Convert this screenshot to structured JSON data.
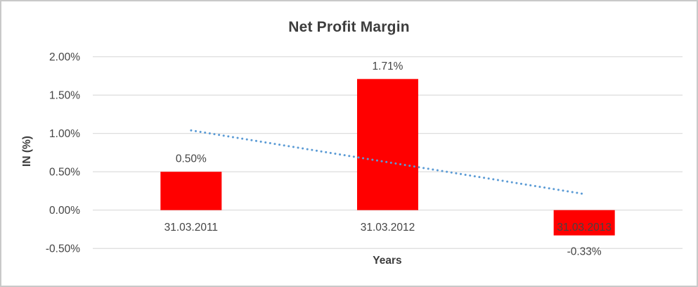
{
  "chart_data": {
    "type": "bar",
    "title": "Net Profit Margin",
    "xlabel": "Years",
    "ylabel": "IN (%)",
    "categories": [
      "31.03.2011",
      "31.03.2012",
      "31.03.2013"
    ],
    "series": [
      {
        "name": "Net Profit Margin",
        "values": [
          0.5,
          1.71,
          -0.33
        ]
      }
    ],
    "data_labels": [
      "0.50%",
      "1.71%",
      "-0.33%"
    ],
    "y_ticks": [
      {
        "label": "2.00%",
        "value": 2.0
      },
      {
        "label": "1.50%",
        "value": 1.5
      },
      {
        "label": "1.00%",
        "value": 1.0
      },
      {
        "label": "0.50%",
        "value": 0.5
      },
      {
        "label": "0.00%",
        "value": 0.0
      },
      {
        "label": "-0.50%",
        "value": -0.5
      }
    ],
    "ylim": [
      -0.5,
      2.0
    ],
    "grid": true,
    "legend": "none",
    "trendline": {
      "type": "linear",
      "style": "dotted",
      "color": "#5B9BD5",
      "start_value": 1.04,
      "end_value": 0.21
    },
    "colors": {
      "bar": "#FF0000",
      "gridline": "#D9D9D9",
      "label_text": "#444444",
      "title_text": "#3D3D3D"
    }
  }
}
